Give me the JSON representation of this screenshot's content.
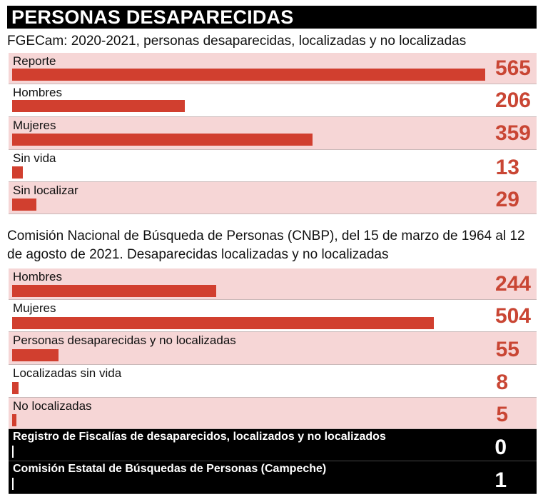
{
  "header": {
    "title": "PERSONAS DESAPARECIDAS",
    "subtitle1": "FGECam: 2020-2021, personas desaparecidas, localizadas y no localizadas",
    "subtitle2": "Comisión Nacional de Búsqueda de Personas (CNBP), del 15 de marzo de 1964 al 12 de agosto de 2021. Desaparecidas localizadas y no localizadas"
  },
  "colors": {
    "bar": "#d13f2f",
    "value": "#c94634",
    "row_shade": "#f6d6d6",
    "dark_row": "#000000"
  },
  "chart_data": [
    {
      "type": "bar",
      "title": "FGECam: 2020-2021, personas desaparecidas, localizadas y no localizadas",
      "categories": [
        "Reporte",
        "Hombres",
        "Mujeres",
        "Sin vida",
        "Sin localizar"
      ],
      "values": [
        565,
        206,
        359,
        13,
        29
      ]
    },
    {
      "type": "bar",
      "title": "Comisión Nacional de Búsqueda de Personas (CNBP), del 15 de marzo de 1964 al 12 de agosto de 2021. Desaparecidas localizadas y no localizadas",
      "categories": [
        "Hombres",
        "Mujeres",
        "Personas desaparecidas y no localizadas",
        "Localizadas sin vida",
        "No localizadas"
      ],
      "values": [
        244,
        504,
        55,
        8,
        5
      ]
    },
    {
      "type": "bar",
      "categories": [
        "Registro de Fiscalías de desaparecidos, localizados y no localizados",
        "Comisión Estatal de Búsquedas de Personas (Campeche)"
      ],
      "values": [
        0,
        1
      ]
    }
  ]
}
